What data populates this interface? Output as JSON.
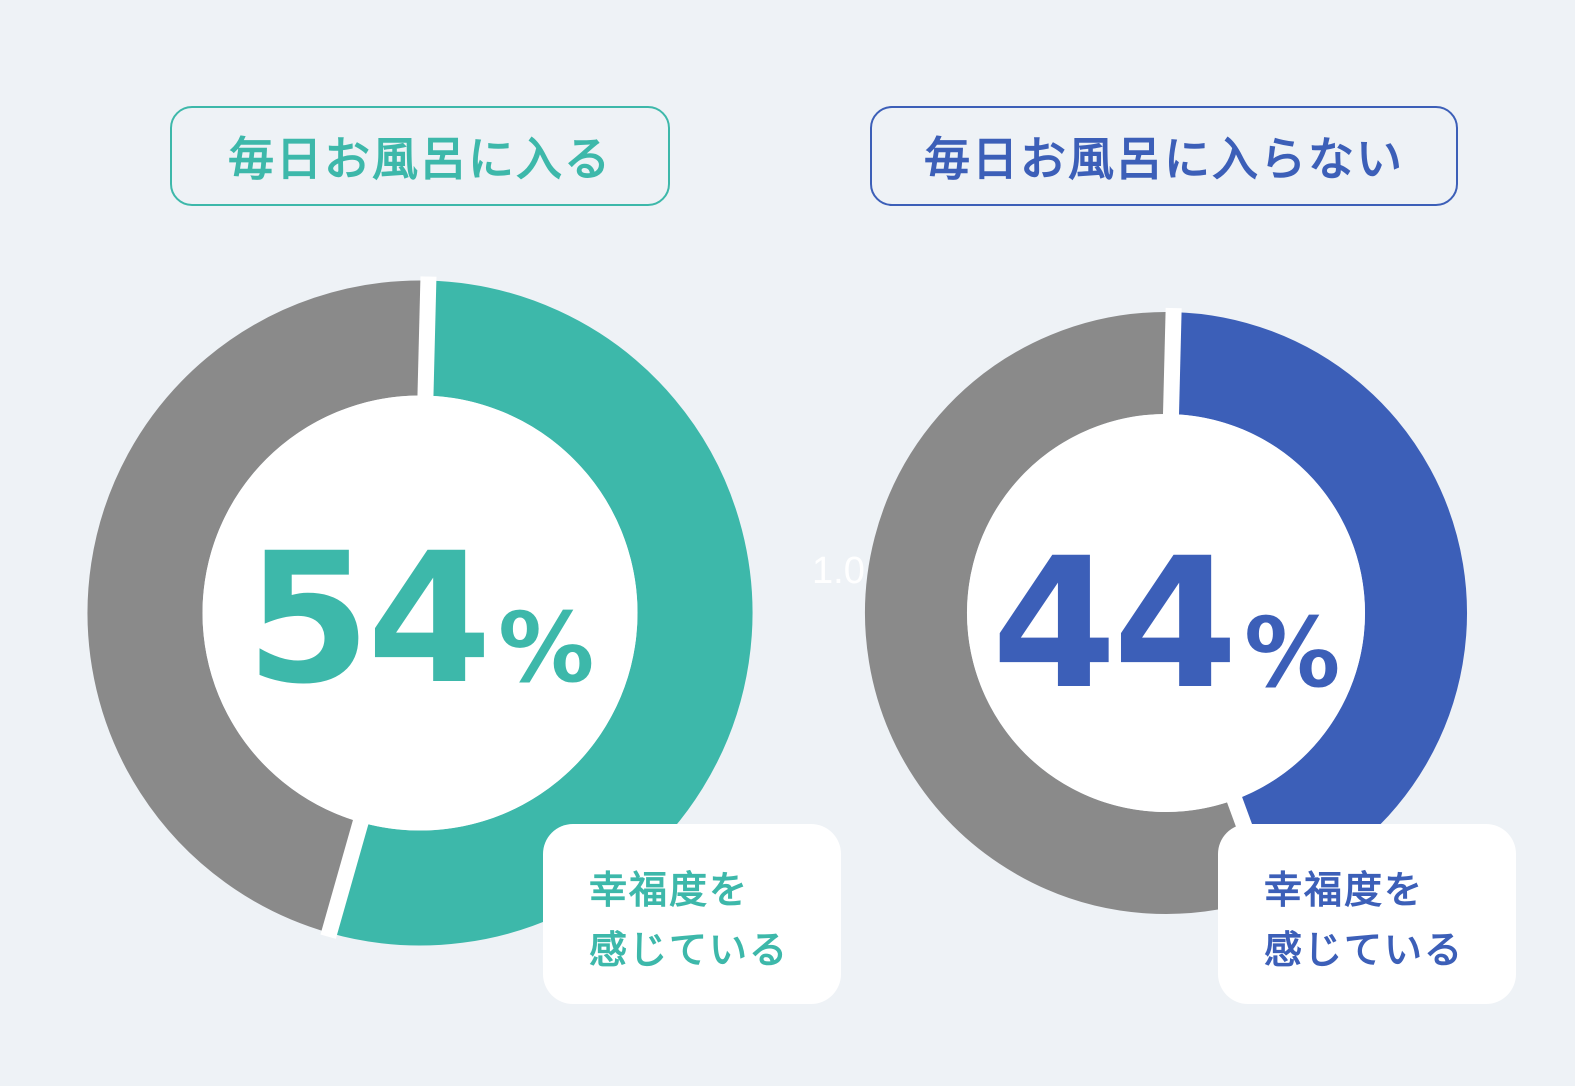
{
  "chart_data": [
    {
      "type": "pie",
      "title": "毎日お風呂に入る",
      "values": [
        54,
        46
      ],
      "center_value": "54",
      "center_unit": "%",
      "note_line1": "幸福度を",
      "note_line2": "感じている",
      "colors": [
        "#3db8aa",
        "#8a8a8a"
      ]
    },
    {
      "type": "pie",
      "title": "毎日お風呂に入らない",
      "values": [
        44,
        56
      ],
      "center_value": "44",
      "center_unit": "%",
      "note_line1": "幸福度を",
      "note_line2": "感じている",
      "colors": [
        "#3c5fb8",
        "#8a8a8a"
      ]
    }
  ],
  "stray_label": "1.0"
}
